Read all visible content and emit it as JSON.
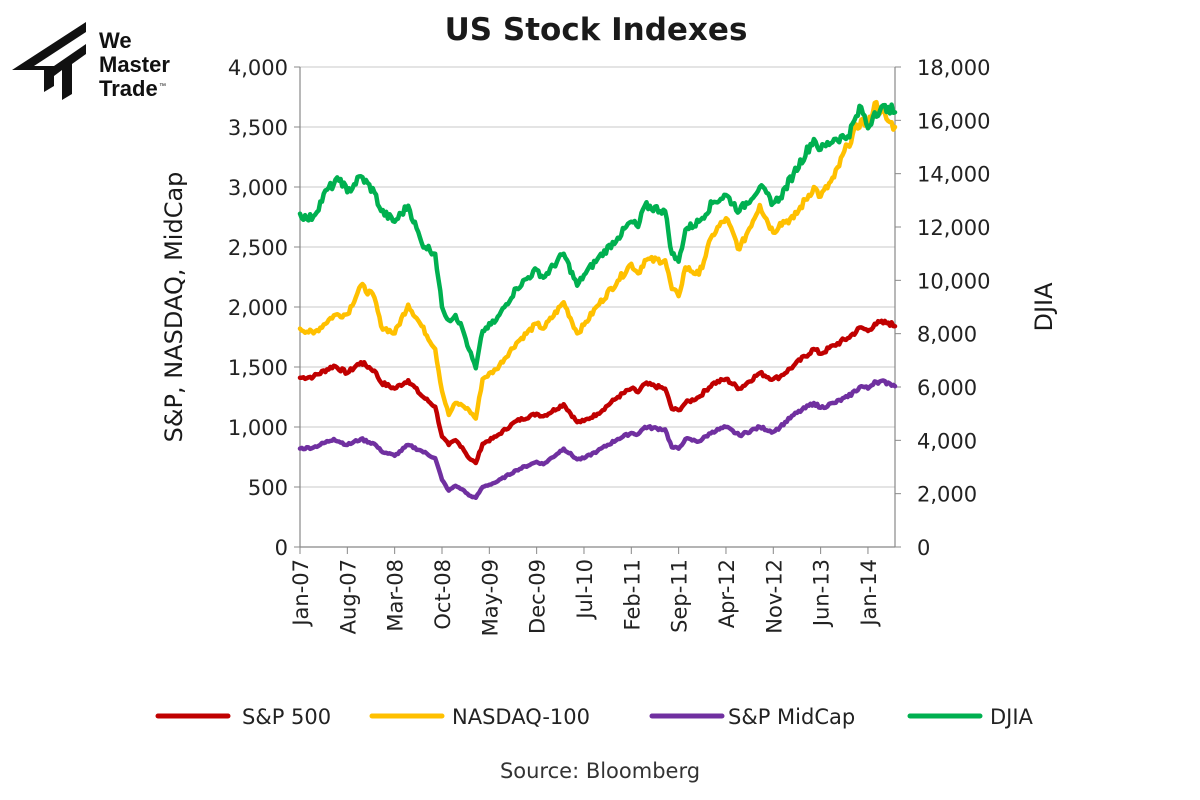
{
  "logo": {
    "line1": "We",
    "line2": "Master",
    "line3": "Trade",
    "tm": "™"
  },
  "chart_data": {
    "type": "line",
    "title": "US Stock Indexes",
    "ylabel": "S&P, NASDAQ, MidCap",
    "y2label": "DJIA",
    "ylim": [
      0,
      4000
    ],
    "y2lim": [
      0,
      18000
    ],
    "yticks": [
      0,
      500,
      1000,
      1500,
      2000,
      2500,
      3000,
      3500,
      4000
    ],
    "yticklabels": [
      "0",
      "500",
      "1,000",
      "1,500",
      "2,000",
      "2,500",
      "3,000",
      "3,500",
      "4,000"
    ],
    "y2ticks": [
      0,
      2000,
      4000,
      6000,
      8000,
      10000,
      12000,
      14000,
      16000,
      18000
    ],
    "y2ticklabels": [
      "0",
      "2,000",
      "4,000",
      "6,000",
      "8,000",
      "10,000",
      "12,000",
      "14,000",
      "16,000",
      "18,000"
    ],
    "xlim": [
      "2007-01",
      "2014-05"
    ],
    "xticks": [
      "2007-01",
      "2007-08",
      "2008-03",
      "2008-10",
      "2009-05",
      "2009-12",
      "2010-07",
      "2011-02",
      "2011-09",
      "2012-04",
      "2012-11",
      "2013-06",
      "2014-01"
    ],
    "xticklabels": [
      "Jan-07",
      "Aug-07",
      "Mar-08",
      "Oct-08",
      "May-09",
      "Dec-09",
      "Jul-10",
      "Feb-11",
      "Sep-11",
      "Apr-12",
      "Nov-12",
      "Jun-13",
      "Jan-14"
    ],
    "grid": true,
    "legend_position": "bottom",
    "source": "Source: Bloomberg",
    "series": [
      {
        "name": "S&P 500",
        "axis": "left",
        "color": "#c00000",
        "points": [
          [
            "2007-01",
            1410
          ],
          [
            "2007-03",
            1420
          ],
          [
            "2007-06",
            1510
          ],
          [
            "2007-08",
            1450
          ],
          [
            "2007-10",
            1540
          ],
          [
            "2007-12",
            1470
          ],
          [
            "2008-01",
            1370
          ],
          [
            "2008-03",
            1320
          ],
          [
            "2008-05",
            1390
          ],
          [
            "2008-07",
            1260
          ],
          [
            "2008-09",
            1170
          ],
          [
            "2008-10",
            920
          ],
          [
            "2008-11",
            850
          ],
          [
            "2008-12",
            890
          ],
          [
            "2009-01",
            830
          ],
          [
            "2009-02",
            740
          ],
          [
            "2009-03",
            700
          ],
          [
            "2009-04",
            860
          ],
          [
            "2009-06",
            920
          ],
          [
            "2009-09",
            1050
          ],
          [
            "2009-12",
            1110
          ],
          [
            "2010-01",
            1090
          ],
          [
            "2010-04",
            1190
          ],
          [
            "2010-06",
            1040
          ],
          [
            "2010-07",
            1050
          ],
          [
            "2010-09",
            1110
          ],
          [
            "2010-12",
            1250
          ],
          [
            "2011-02",
            1320
          ],
          [
            "2011-03",
            1290
          ],
          [
            "2011-04",
            1360
          ],
          [
            "2011-07",
            1320
          ],
          [
            "2011-08",
            1150
          ],
          [
            "2011-09",
            1140
          ],
          [
            "2011-10",
            1200
          ],
          [
            "2011-12",
            1250
          ],
          [
            "2012-02",
            1360
          ],
          [
            "2012-04",
            1400
          ],
          [
            "2012-06",
            1320
          ],
          [
            "2012-09",
            1450
          ],
          [
            "2012-11",
            1400
          ],
          [
            "2012-12",
            1420
          ],
          [
            "2013-02",
            1510
          ],
          [
            "2013-05",
            1650
          ],
          [
            "2013-06",
            1610
          ],
          [
            "2013-08",
            1680
          ],
          [
            "2013-10",
            1740
          ],
          [
            "2013-12",
            1830
          ],
          [
            "2014-01",
            1800
          ],
          [
            "2014-02",
            1860
          ],
          [
            "2014-04",
            1870
          ],
          [
            "2014-05",
            1840
          ]
        ]
      },
      {
        "name": "NASDAQ-100",
        "axis": "left",
        "color": "#ffc000",
        "points": [
          [
            "2007-01",
            1820
          ],
          [
            "2007-03",
            1780
          ],
          [
            "2007-06",
            1930
          ],
          [
            "2007-08",
            1940
          ],
          [
            "2007-10",
            2180
          ],
          [
            "2007-12",
            2080
          ],
          [
            "2008-01",
            1840
          ],
          [
            "2008-03",
            1780
          ],
          [
            "2008-05",
            2020
          ],
          [
            "2008-07",
            1840
          ],
          [
            "2008-09",
            1650
          ],
          [
            "2008-10",
            1300
          ],
          [
            "2008-11",
            1100
          ],
          [
            "2008-12",
            1200
          ],
          [
            "2009-01",
            1180
          ],
          [
            "2009-02",
            1140
          ],
          [
            "2009-03",
            1070
          ],
          [
            "2009-04",
            1400
          ],
          [
            "2009-06",
            1480
          ],
          [
            "2009-09",
            1700
          ],
          [
            "2009-12",
            1860
          ],
          [
            "2010-01",
            1820
          ],
          [
            "2010-04",
            2040
          ],
          [
            "2010-06",
            1780
          ],
          [
            "2010-07",
            1850
          ],
          [
            "2010-09",
            2010
          ],
          [
            "2010-12",
            2220
          ],
          [
            "2011-02",
            2360
          ],
          [
            "2011-03",
            2280
          ],
          [
            "2011-04",
            2390
          ],
          [
            "2011-07",
            2390
          ],
          [
            "2011-08",
            2150
          ],
          [
            "2011-09",
            2090
          ],
          [
            "2011-10",
            2330
          ],
          [
            "2011-12",
            2270
          ],
          [
            "2012-02",
            2600
          ],
          [
            "2012-04",
            2740
          ],
          [
            "2012-06",
            2480
          ],
          [
            "2012-09",
            2850
          ],
          [
            "2012-11",
            2620
          ],
          [
            "2012-12",
            2700
          ],
          [
            "2013-02",
            2740
          ],
          [
            "2013-05",
            3000
          ],
          [
            "2013-06",
            2920
          ],
          [
            "2013-08",
            3080
          ],
          [
            "2013-10",
            3350
          ],
          [
            "2013-12",
            3560
          ],
          [
            "2014-01",
            3500
          ],
          [
            "2014-02",
            3700
          ],
          [
            "2014-04",
            3550
          ],
          [
            "2014-05",
            3500
          ]
        ]
      },
      {
        "name": "S&P MidCap",
        "axis": "left",
        "color": "#7030a0",
        "points": [
          [
            "2007-01",
            820
          ],
          [
            "2007-03",
            830
          ],
          [
            "2007-06",
            900
          ],
          [
            "2007-08",
            850
          ],
          [
            "2007-10",
            900
          ],
          [
            "2007-12",
            860
          ],
          [
            "2008-01",
            800
          ],
          [
            "2008-03",
            760
          ],
          [
            "2008-05",
            850
          ],
          [
            "2008-07",
            800
          ],
          [
            "2008-09",
            740
          ],
          [
            "2008-10",
            560
          ],
          [
            "2008-11",
            470
          ],
          [
            "2008-12",
            510
          ],
          [
            "2009-01",
            480
          ],
          [
            "2009-02",
            430
          ],
          [
            "2009-03",
            410
          ],
          [
            "2009-04",
            500
          ],
          [
            "2009-06",
            540
          ],
          [
            "2009-09",
            640
          ],
          [
            "2009-12",
            710
          ],
          [
            "2010-01",
            690
          ],
          [
            "2010-04",
            820
          ],
          [
            "2010-06",
            730
          ],
          [
            "2010-07",
            740
          ],
          [
            "2010-09",
            800
          ],
          [
            "2010-12",
            900
          ],
          [
            "2011-02",
            950
          ],
          [
            "2011-03",
            940
          ],
          [
            "2011-04",
            1000
          ],
          [
            "2011-07",
            980
          ],
          [
            "2011-08",
            830
          ],
          [
            "2011-09",
            820
          ],
          [
            "2011-10",
            900
          ],
          [
            "2011-12",
            880
          ],
          [
            "2012-02",
            960
          ],
          [
            "2012-04",
            1000
          ],
          [
            "2012-06",
            930
          ],
          [
            "2012-09",
            1000
          ],
          [
            "2012-11",
            960
          ],
          [
            "2012-12",
            1000
          ],
          [
            "2013-02",
            1100
          ],
          [
            "2013-05",
            1200
          ],
          [
            "2013-06",
            1160
          ],
          [
            "2013-08",
            1200
          ],
          [
            "2013-10",
            1250
          ],
          [
            "2013-12",
            1340
          ],
          [
            "2014-01",
            1320
          ],
          [
            "2014-02",
            1380
          ],
          [
            "2014-04",
            1370
          ],
          [
            "2014-05",
            1340
          ]
        ]
      },
      {
        "name": "DJIA",
        "axis": "right",
        "color": "#00b050",
        "points": [
          [
            "2007-01",
            12500
          ],
          [
            "2007-02",
            12300
          ],
          [
            "2007-03",
            12400
          ],
          [
            "2007-05",
            13400
          ],
          [
            "2007-07",
            13800
          ],
          [
            "2007-08",
            13300
          ],
          [
            "2007-10",
            13900
          ],
          [
            "2007-12",
            13300
          ],
          [
            "2008-01",
            12600
          ],
          [
            "2008-03",
            12200
          ],
          [
            "2008-05",
            12800
          ],
          [
            "2008-07",
            11400
          ],
          [
            "2008-09",
            11000
          ],
          [
            "2008-10",
            9000
          ],
          [
            "2008-11",
            8500
          ],
          [
            "2008-12",
            8700
          ],
          [
            "2009-01",
            8200
          ],
          [
            "2009-02",
            7400
          ],
          [
            "2009-03",
            6700
          ],
          [
            "2009-04",
            8100
          ],
          [
            "2009-06",
            8500
          ],
          [
            "2009-09",
            9700
          ],
          [
            "2009-12",
            10400
          ],
          [
            "2010-01",
            10100
          ],
          [
            "2010-04",
            11000
          ],
          [
            "2010-06",
            9800
          ],
          [
            "2010-07",
            10200
          ],
          [
            "2010-09",
            10800
          ],
          [
            "2010-12",
            11600
          ],
          [
            "2011-02",
            12200
          ],
          [
            "2011-03",
            12000
          ],
          [
            "2011-04",
            12800
          ],
          [
            "2011-07",
            12600
          ],
          [
            "2011-08",
            11000
          ],
          [
            "2011-09",
            10700
          ],
          [
            "2011-10",
            11900
          ],
          [
            "2011-12",
            12200
          ],
          [
            "2012-02",
            12900
          ],
          [
            "2012-04",
            13200
          ],
          [
            "2012-06",
            12600
          ],
          [
            "2012-09",
            13500
          ],
          [
            "2012-11",
            12900
          ],
          [
            "2012-12",
            13100
          ],
          [
            "2013-02",
            14000
          ],
          [
            "2013-05",
            15300
          ],
          [
            "2013-06",
            14900
          ],
          [
            "2013-08",
            15300
          ],
          [
            "2013-10",
            15400
          ],
          [
            "2013-12",
            16500
          ],
          [
            "2014-01",
            15700
          ],
          [
            "2014-02",
            16300
          ],
          [
            "2014-04",
            16500
          ],
          [
            "2014-05",
            16300
          ]
        ]
      }
    ]
  }
}
